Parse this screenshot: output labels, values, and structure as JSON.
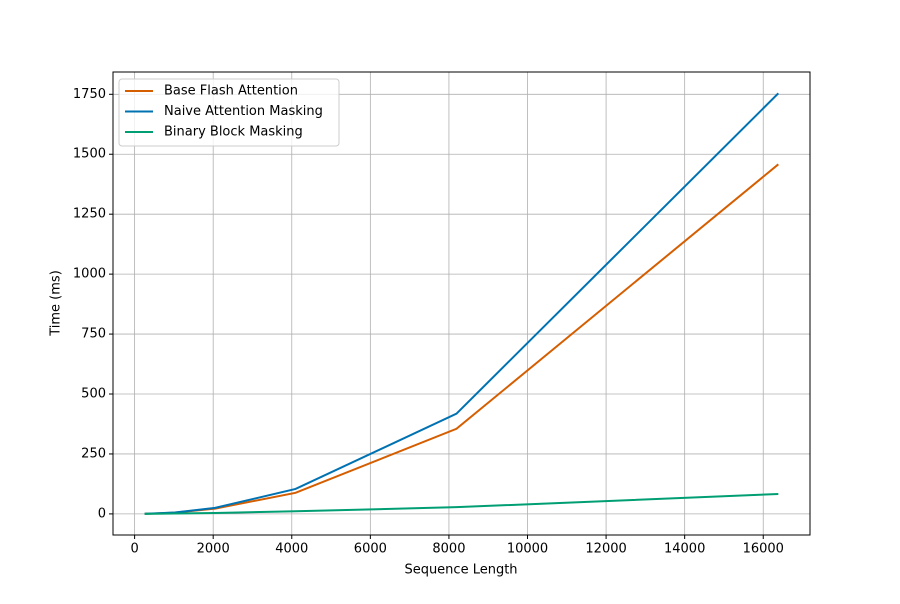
{
  "chart_data": {
    "type": "line",
    "x_label": "Sequence Length",
    "y_label": "Time (ms)",
    "x": [
      256,
      512,
      1024,
      2048,
      4096,
      8192,
      16384
    ],
    "series": [
      {
        "name": "Base Flash Attention",
        "color": "#d55e00",
        "values": [
          0.4,
          1.5,
          5.5,
          22,
          88,
          355,
          1458
        ]
      },
      {
        "name": "Naive Attention Masking",
        "color": "#0072b2",
        "values": [
          0.5,
          2,
          6,
          25,
          104,
          418,
          1754
        ]
      },
      {
        "name": "Binary Block Masking",
        "color": "#009e73",
        "values": [
          0.2,
          0.6,
          1.5,
          4,
          11,
          28,
          83
        ]
      }
    ],
    "xlim": [
      -550,
      17190
    ],
    "ylim": [
      -88,
      1843
    ],
    "xticks": [
      0,
      2000,
      4000,
      6000,
      8000,
      10000,
      12000,
      14000,
      16000
    ],
    "yticks": [
      0,
      250,
      500,
      750,
      1000,
      1250,
      1500,
      1750
    ],
    "grid": true,
    "legend": "upper left"
  }
}
